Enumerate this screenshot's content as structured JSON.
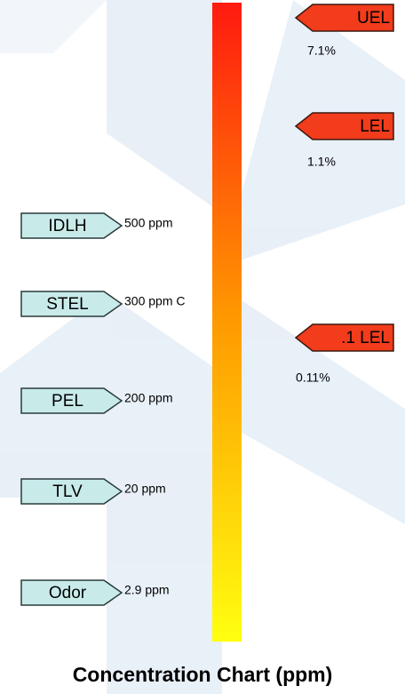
{
  "title": "Concentration Chart (ppm)",
  "left_markers": [
    {
      "label": "IDLH",
      "value": "500 ppm"
    },
    {
      "label": "STEL",
      "value": "300 ppm C"
    },
    {
      "label": "PEL",
      "value": "200 ppm"
    },
    {
      "label": "TLV",
      "value": "20 ppm"
    },
    {
      "label": "Odor",
      "value": "2.9 ppm"
    }
  ],
  "right_markers": [
    {
      "label": "UEL",
      "value": "7.1%"
    },
    {
      "label": "LEL",
      "value": "1.1%"
    },
    {
      "label": ".1 LEL",
      "value": "0.11%"
    }
  ]
}
